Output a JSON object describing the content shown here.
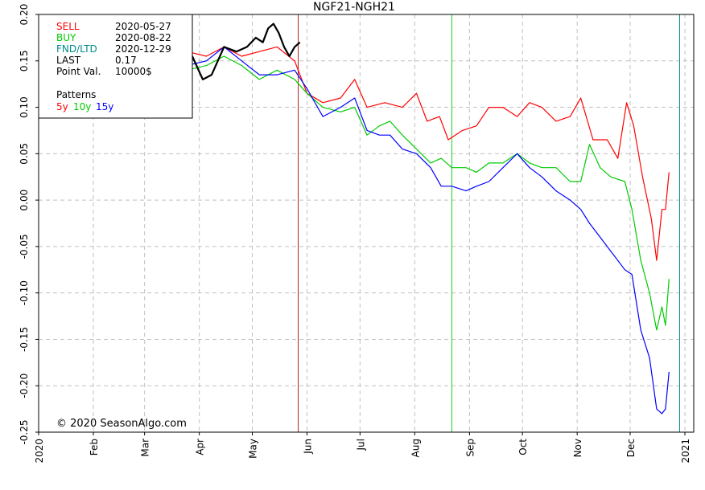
{
  "chart_data": {
    "type": "line",
    "title": "NGF21-NGH21",
    "xlabel": "",
    "ylabel": "",
    "ylim": [
      -0.25,
      0.2
    ],
    "yticks": [
      0.2,
      0.15,
      0.1,
      0.05,
      0.0,
      -0.05,
      -0.1,
      -0.15,
      -0.2,
      -0.25
    ],
    "ytick_labels": [
      "0.20",
      "0.15",
      "0.10",
      "0.05",
      "0.00",
      "-0.05",
      "-0.10",
      "-0.15",
      "-0.20",
      "-0.25"
    ],
    "x_range": [
      "2020-01-01",
      "2021-01-06"
    ],
    "xticks": [
      {
        "date": "2020-01-01",
        "label": "2020"
      },
      {
        "date": "2020-02-01",
        "label": "Feb"
      },
      {
        "date": "2020-03-01",
        "label": "Mar"
      },
      {
        "date": "2020-04-01",
        "label": "Apr"
      },
      {
        "date": "2020-05-01",
        "label": "May"
      },
      {
        "date": "2020-06-01",
        "label": "Jun"
      },
      {
        "date": "2020-07-01",
        "label": "Jul"
      },
      {
        "date": "2020-08-01",
        "label": "Aug"
      },
      {
        "date": "2020-09-01",
        "label": "Sep"
      },
      {
        "date": "2020-10-01",
        "label": "Oct"
      },
      {
        "date": "2020-11-01",
        "label": "Nov"
      },
      {
        "date": "2020-12-01",
        "label": "Dec"
      },
      {
        "date": "2021-01-01",
        "label": "2021"
      }
    ],
    "grid": true,
    "vlines": [
      {
        "date": "2020-05-27",
        "color": "#b22222"
      },
      {
        "date": "2020-08-22",
        "color": "#22cc22"
      },
      {
        "date": "2020-12-29",
        "color": "#008b8b"
      }
    ],
    "legend": {
      "position": "top-left",
      "rows": [
        {
          "label": "SELL",
          "value": "2020-05-27",
          "color": "#ff0000"
        },
        {
          "label": "BUY",
          "value": "2020-08-22",
          "color": "#00cc00"
        },
        {
          "label": "FND/LTD",
          "value": "2020-12-29",
          "color": "#008b8b"
        },
        {
          "label": "LAST",
          "value": "0.17",
          "color": "#000000"
        },
        {
          "label": "Point Val.",
          "value": "10000$",
          "color": "#000000"
        }
      ],
      "patterns_label": "Patterns",
      "patterns": [
        {
          "label": "5y",
          "color": "#ff0000"
        },
        {
          "label": "10y",
          "color": "#00cc00"
        },
        {
          "label": "15y",
          "color": "#0000ff"
        }
      ]
    },
    "copyright": "© 2020 SeasonAlgo.com",
    "series": [
      {
        "color": "#ff0000",
        "points": [
          [
            "2020-03-15",
            0.14
          ],
          [
            "2020-03-25",
            0.16
          ],
          [
            "2020-04-05",
            0.155
          ],
          [
            "2020-04-15",
            0.165
          ],
          [
            "2020-04-25",
            0.155
          ],
          [
            "2020-05-05",
            0.16
          ],
          [
            "2020-05-15",
            0.165
          ],
          [
            "2020-05-25",
            0.15
          ],
          [
            "2020-06-01",
            0.115
          ],
          [
            "2020-06-10",
            0.105
          ],
          [
            "2020-06-20",
            0.11
          ],
          [
            "2020-06-28",
            0.13
          ],
          [
            "2020-07-05",
            0.1
          ],
          [
            "2020-07-15",
            0.105
          ],
          [
            "2020-07-25",
            0.1
          ],
          [
            "2020-08-02",
            0.115
          ],
          [
            "2020-08-08",
            0.085
          ],
          [
            "2020-08-15",
            0.09
          ],
          [
            "2020-08-20",
            0.065
          ],
          [
            "2020-08-28",
            0.075
          ],
          [
            "2020-09-05",
            0.08
          ],
          [
            "2020-09-12",
            0.1
          ],
          [
            "2020-09-20",
            0.1
          ],
          [
            "2020-09-28",
            0.09
          ],
          [
            "2020-10-05",
            0.105
          ],
          [
            "2020-10-12",
            0.1
          ],
          [
            "2020-10-20",
            0.085
          ],
          [
            "2020-10-28",
            0.09
          ],
          [
            "2020-11-03",
            0.11
          ],
          [
            "2020-11-10",
            0.065
          ],
          [
            "2020-11-18",
            0.065
          ],
          [
            "2020-11-24",
            0.045
          ],
          [
            "2020-11-29",
            0.105
          ],
          [
            "2020-12-03",
            0.08
          ],
          [
            "2020-12-08",
            0.025
          ],
          [
            "2020-12-13",
            -0.02
          ],
          [
            "2020-12-16",
            -0.065
          ],
          [
            "2020-12-19",
            -0.01
          ],
          [
            "2020-12-21",
            -0.01
          ],
          [
            "2020-12-23",
            0.03
          ]
        ]
      },
      {
        "color": "#00cc00",
        "points": [
          [
            "2020-03-15",
            0.13
          ],
          [
            "2020-03-25",
            0.14
          ],
          [
            "2020-04-05",
            0.145
          ],
          [
            "2020-04-15",
            0.155
          ],
          [
            "2020-04-25",
            0.145
          ],
          [
            "2020-05-05",
            0.13
          ],
          [
            "2020-05-15",
            0.14
          ],
          [
            "2020-05-25",
            0.13
          ],
          [
            "2020-06-01",
            0.115
          ],
          [
            "2020-06-10",
            0.1
          ],
          [
            "2020-06-20",
            0.095
          ],
          [
            "2020-06-28",
            0.1
          ],
          [
            "2020-07-05",
            0.07
          ],
          [
            "2020-07-12",
            0.08
          ],
          [
            "2020-07-18",
            0.085
          ],
          [
            "2020-07-25",
            0.07
          ],
          [
            "2020-08-02",
            0.055
          ],
          [
            "2020-08-10",
            0.04
          ],
          [
            "2020-08-16",
            0.045
          ],
          [
            "2020-08-22",
            0.035
          ],
          [
            "2020-08-30",
            0.035
          ],
          [
            "2020-09-05",
            0.03
          ],
          [
            "2020-09-12",
            0.04
          ],
          [
            "2020-09-20",
            0.04
          ],
          [
            "2020-09-28",
            0.05
          ],
          [
            "2020-10-05",
            0.04
          ],
          [
            "2020-10-12",
            0.035
          ],
          [
            "2020-10-20",
            0.035
          ],
          [
            "2020-10-28",
            0.02
          ],
          [
            "2020-11-03",
            0.02
          ],
          [
            "2020-11-08",
            0.06
          ],
          [
            "2020-11-14",
            0.035
          ],
          [
            "2020-11-20",
            0.025
          ],
          [
            "2020-11-28",
            0.02
          ],
          [
            "2020-12-02",
            -0.01
          ],
          [
            "2020-12-07",
            -0.065
          ],
          [
            "2020-12-12",
            -0.1
          ],
          [
            "2020-12-16",
            -0.14
          ],
          [
            "2020-12-19",
            -0.115
          ],
          [
            "2020-12-21",
            -0.135
          ],
          [
            "2020-12-23",
            -0.085
          ]
        ]
      },
      {
        "color": "#0000ff",
        "points": [
          [
            "2020-03-15",
            0.14
          ],
          [
            "2020-03-25",
            0.145
          ],
          [
            "2020-04-05",
            0.15
          ],
          [
            "2020-04-15",
            0.165
          ],
          [
            "2020-04-25",
            0.15
          ],
          [
            "2020-05-05",
            0.135
          ],
          [
            "2020-05-15",
            0.135
          ],
          [
            "2020-05-25",
            0.14
          ],
          [
            "2020-06-01",
            0.12
          ],
          [
            "2020-06-10",
            0.09
          ],
          [
            "2020-06-20",
            0.1
          ],
          [
            "2020-06-28",
            0.11
          ],
          [
            "2020-07-05",
            0.075
          ],
          [
            "2020-07-12",
            0.07
          ],
          [
            "2020-07-18",
            0.07
          ],
          [
            "2020-07-25",
            0.055
          ],
          [
            "2020-08-02",
            0.05
          ],
          [
            "2020-08-10",
            0.035
          ],
          [
            "2020-08-16",
            0.015
          ],
          [
            "2020-08-22",
            0.015
          ],
          [
            "2020-08-30",
            0.01
          ],
          [
            "2020-09-05",
            0.015
          ],
          [
            "2020-09-12",
            0.02
          ],
          [
            "2020-09-20",
            0.035
          ],
          [
            "2020-09-28",
            0.05
          ],
          [
            "2020-10-05",
            0.035
          ],
          [
            "2020-10-12",
            0.025
          ],
          [
            "2020-10-20",
            0.01
          ],
          [
            "2020-10-28",
            0.0
          ],
          [
            "2020-11-03",
            -0.01
          ],
          [
            "2020-11-08",
            -0.025
          ],
          [
            "2020-11-14",
            -0.04
          ],
          [
            "2020-11-20",
            -0.055
          ],
          [
            "2020-11-28",
            -0.075
          ],
          [
            "2020-12-02",
            -0.08
          ],
          [
            "2020-12-07",
            -0.14
          ],
          [
            "2020-12-12",
            -0.17
          ],
          [
            "2020-12-16",
            -0.225
          ],
          [
            "2020-12-19",
            -0.23
          ],
          [
            "2020-12-21",
            -0.225
          ],
          [
            "2020-12-23",
            -0.185
          ]
        ]
      },
      {
        "color": "#000000",
        "points": [
          [
            "2020-03-20",
            0.13
          ],
          [
            "2020-03-28",
            0.155
          ],
          [
            "2020-04-03",
            0.13
          ],
          [
            "2020-04-08",
            0.135
          ],
          [
            "2020-04-15",
            0.165
          ],
          [
            "2020-04-22",
            0.16
          ],
          [
            "2020-04-28",
            0.165
          ],
          [
            "2020-05-03",
            0.175
          ],
          [
            "2020-05-07",
            0.17
          ],
          [
            "2020-05-10",
            0.185
          ],
          [
            "2020-05-13",
            0.19
          ],
          [
            "2020-05-16",
            0.18
          ],
          [
            "2020-05-19",
            0.165
          ],
          [
            "2020-05-22",
            0.155
          ],
          [
            "2020-05-25",
            0.165
          ],
          [
            "2020-05-28",
            0.17
          ]
        ]
      }
    ]
  }
}
